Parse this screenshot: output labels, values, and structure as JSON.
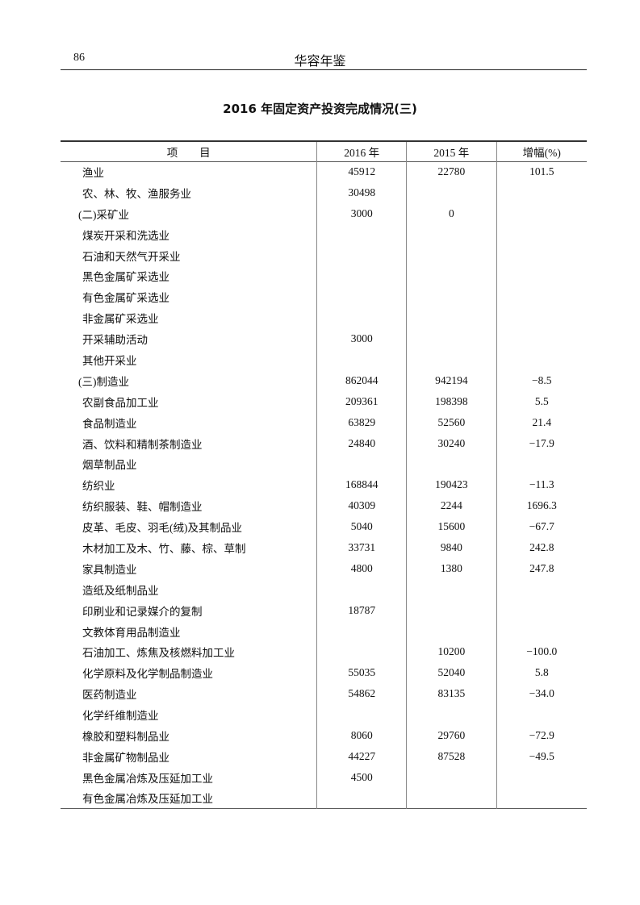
{
  "page": {
    "number": "86",
    "running_head": "华容年鉴"
  },
  "title": "2016 年固定资产投资完成情况(三)",
  "table": {
    "headers": [
      "项　　目",
      "2016 年",
      "2015 年",
      "增幅(%)"
    ],
    "rows": [
      {
        "item": "渔业",
        "level": 1,
        "y2016": "45912",
        "y2015": "22780",
        "growth": "101.5"
      },
      {
        "item": "农、林、牧、渔服务业",
        "level": 1,
        "y2016": "30498",
        "y2015": "",
        "growth": ""
      },
      {
        "item": "(二)采矿业",
        "level": 0,
        "y2016": "3000",
        "y2015": "0",
        "growth": ""
      },
      {
        "item": "煤炭开采和洗选业",
        "level": 1,
        "y2016": "",
        "y2015": "",
        "growth": ""
      },
      {
        "item": "石油和天然气开采业",
        "level": 1,
        "y2016": "",
        "y2015": "",
        "growth": ""
      },
      {
        "item": "黑色金属矿采选业",
        "level": 1,
        "y2016": "",
        "y2015": "",
        "growth": ""
      },
      {
        "item": "有色金属矿采选业",
        "level": 1,
        "y2016": "",
        "y2015": "",
        "growth": ""
      },
      {
        "item": "非金属矿采选业",
        "level": 1,
        "y2016": "",
        "y2015": "",
        "growth": ""
      },
      {
        "item": "开采辅助活动",
        "level": 1,
        "y2016": "3000",
        "y2015": "",
        "growth": ""
      },
      {
        "item": "其他开采业",
        "level": 1,
        "y2016": "",
        "y2015": "",
        "growth": ""
      },
      {
        "item": "(三)制造业",
        "level": 0,
        "y2016": "862044",
        "y2015": "942194",
        "growth": "−8.5"
      },
      {
        "item": "农副食品加工业",
        "level": 1,
        "y2016": "209361",
        "y2015": "198398",
        "growth": "5.5"
      },
      {
        "item": "食品制造业",
        "level": 1,
        "y2016": "63829",
        "y2015": "52560",
        "growth": "21.4"
      },
      {
        "item": "酒、饮料和精制茶制造业",
        "level": 1,
        "y2016": "24840",
        "y2015": "30240",
        "growth": "−17.9"
      },
      {
        "item": "烟草制品业",
        "level": 1,
        "y2016": "",
        "y2015": "",
        "growth": ""
      },
      {
        "item": "纺织业",
        "level": 1,
        "y2016": "168844",
        "y2015": "190423",
        "growth": "−11.3"
      },
      {
        "item": "纺织服装、鞋、帽制造业",
        "level": 1,
        "y2016": "40309",
        "y2015": "2244",
        "growth": "1696.3"
      },
      {
        "item": "皮革、毛皮、羽毛(绒)及其制品业",
        "level": 1,
        "y2016": "5040",
        "y2015": "15600",
        "growth": "−67.7"
      },
      {
        "item": "木材加工及木、竹、藤、棕、草制",
        "level": 1,
        "y2016": "33731",
        "y2015": "9840",
        "growth": "242.8"
      },
      {
        "item": "家具制造业",
        "level": 1,
        "y2016": "4800",
        "y2015": "1380",
        "growth": "247.8"
      },
      {
        "item": "造纸及纸制品业",
        "level": 1,
        "y2016": "",
        "y2015": "",
        "growth": ""
      },
      {
        "item": "印刷业和记录媒介的复制",
        "level": 1,
        "y2016": "18787",
        "y2015": "",
        "growth": ""
      },
      {
        "item": "文教体育用品制造业",
        "level": 1,
        "y2016": "",
        "y2015": "",
        "growth": ""
      },
      {
        "item": "石油加工、炼焦及核燃料加工业",
        "level": 1,
        "y2016": "",
        "y2015": "10200",
        "growth": "−100.0"
      },
      {
        "item": "化学原料及化学制品制造业",
        "level": 1,
        "y2016": "55035",
        "y2015": "52040",
        "growth": "5.8"
      },
      {
        "item": "医药制造业",
        "level": 1,
        "y2016": "54862",
        "y2015": "83135",
        "growth": "−34.0"
      },
      {
        "item": "化学纤维制造业",
        "level": 1,
        "y2016": "",
        "y2015": "",
        "growth": ""
      },
      {
        "item": "橡胶和塑料制品业",
        "level": 1,
        "y2016": "8060",
        "y2015": "29760",
        "growth": "−72.9"
      },
      {
        "item": "非金属矿物制品业",
        "level": 1,
        "y2016": "44227",
        "y2015": "87528",
        "growth": "−49.5"
      },
      {
        "item": "黑色金属冶炼及压延加工业",
        "level": 1,
        "y2016": "4500",
        "y2015": "",
        "growth": ""
      },
      {
        "item": "有色金属冶炼及压延加工业",
        "level": 1,
        "y2016": "",
        "y2015": "",
        "growth": ""
      }
    ]
  }
}
